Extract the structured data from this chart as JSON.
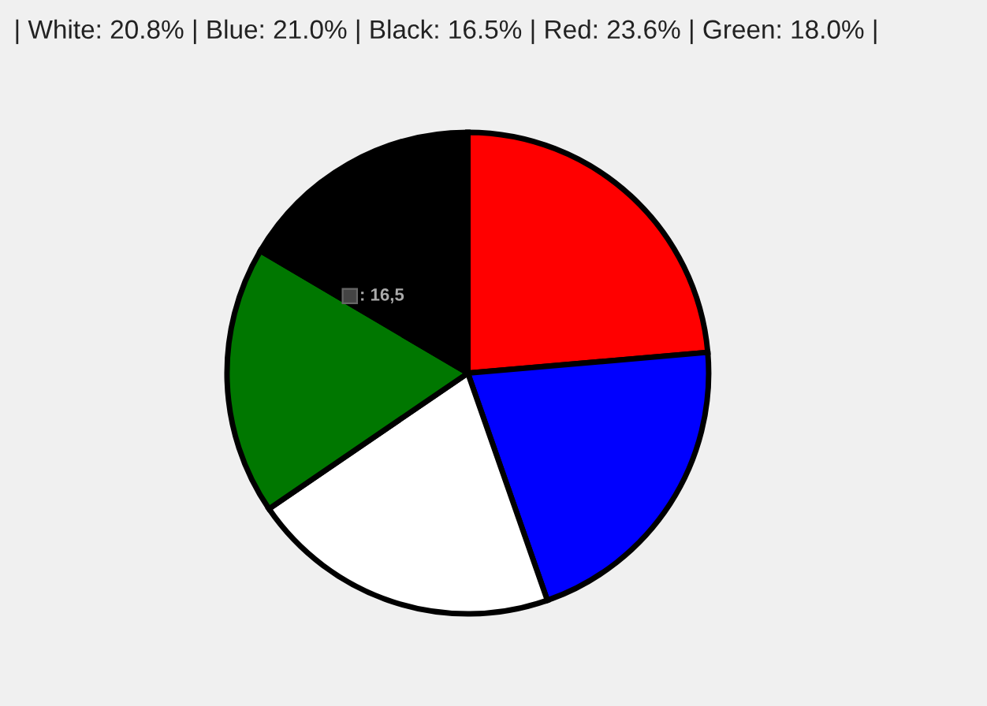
{
  "chart_data": {
    "type": "pie",
    "title": "| White: 20.8% | Blue: 21.0% | Black: 16.5% | Red: 23.6% | Green: 18.0% |",
    "categories": [
      null,
      null,
      null,
      null,
      null
    ],
    "values": [
      23.6,
      21.0,
      20.8,
      18.0,
      16.5
    ],
    "colors": [
      "#ff0000",
      "#0000ff",
      "#ffffff",
      "#007700",
      "#000000"
    ],
    "annotations": [
      ": 16,5"
    ],
    "legend": false
  }
}
